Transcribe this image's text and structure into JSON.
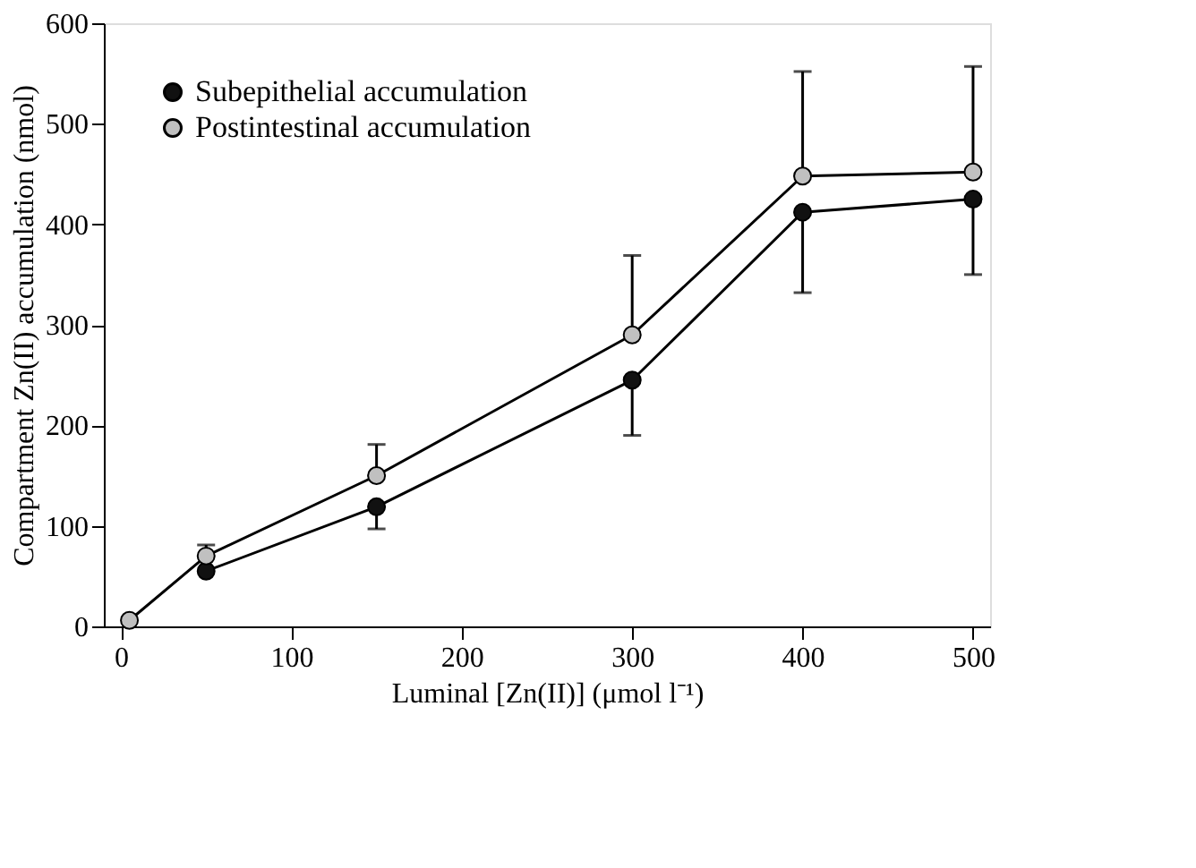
{
  "chart_data": {
    "type": "line",
    "xlabel": "Luminal [Zn(II)] (μmol l⁻¹)",
    "ylabel": "Compartment Zn(II) accumulation (nmol)",
    "x": [
      5,
      50,
      150,
      300,
      400,
      500
    ],
    "series": [
      {
        "name": "Subepithelial accumulation",
        "color": "#111111",
        "values": [
          null,
          55,
          119,
          245,
          412,
          425
        ],
        "errors": [
          null,
          null,
          [
            97,
            119
          ],
          [
            190,
            245
          ],
          [
            332,
            412
          ],
          [
            350,
            425
          ]
        ]
      },
      {
        "name": "Postintestinal accumulation",
        "color": "#c0c0c0",
        "values": [
          6,
          70,
          150,
          290,
          448,
          452
        ],
        "errors": [
          null,
          [
            70,
            81
          ],
          [
            150,
            181
          ],
          [
            290,
            369
          ],
          [
            448,
            552
          ],
          [
            452,
            557
          ]
        ]
      }
    ],
    "xlim": [
      -10,
      510
    ],
    "ylim": [
      0,
      600
    ],
    "xticks": [
      0,
      100,
      200,
      300,
      400,
      500
    ],
    "yticks": [
      0,
      100,
      200,
      300,
      400,
      500,
      600
    ],
    "legend": "top left",
    "marker": "circle",
    "line_style": "solid",
    "grid": false
  }
}
